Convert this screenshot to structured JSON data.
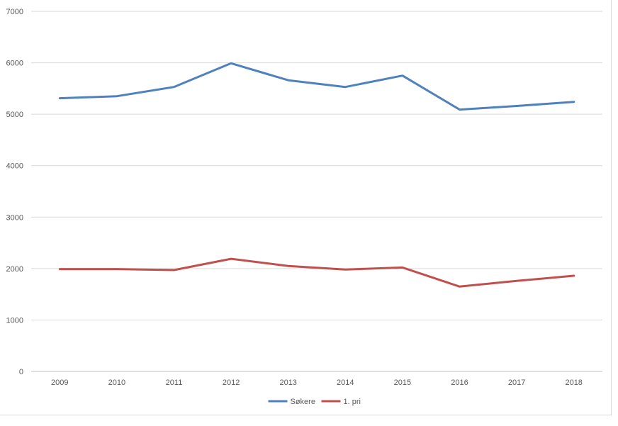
{
  "chart_data": {
    "type": "line",
    "title": "",
    "xlabel": "",
    "ylabel": "",
    "categories": [
      "2009",
      "2010",
      "2011",
      "2012",
      "2013",
      "2014",
      "2015",
      "2016",
      "2017",
      "2018"
    ],
    "ylim": [
      0,
      7000
    ],
    "yticks": [
      "0",
      "1000",
      "2000",
      "3000",
      "4000",
      "5000",
      "6000",
      "7000"
    ],
    "grid": true,
    "legend_position": "bottom",
    "series": [
      {
        "name": "Søkere",
        "color": "#4f81bd",
        "values": [
          5310,
          5350,
          5530,
          5990,
          5660,
          5530,
          5750,
          5090,
          5160,
          5240
        ]
      },
      {
        "name": "1. pri",
        "color": "#c0504d",
        "values": [
          1990,
          1990,
          1970,
          2190,
          2050,
          1980,
          2020,
          1650,
          1760,
          1860
        ]
      }
    ]
  }
}
